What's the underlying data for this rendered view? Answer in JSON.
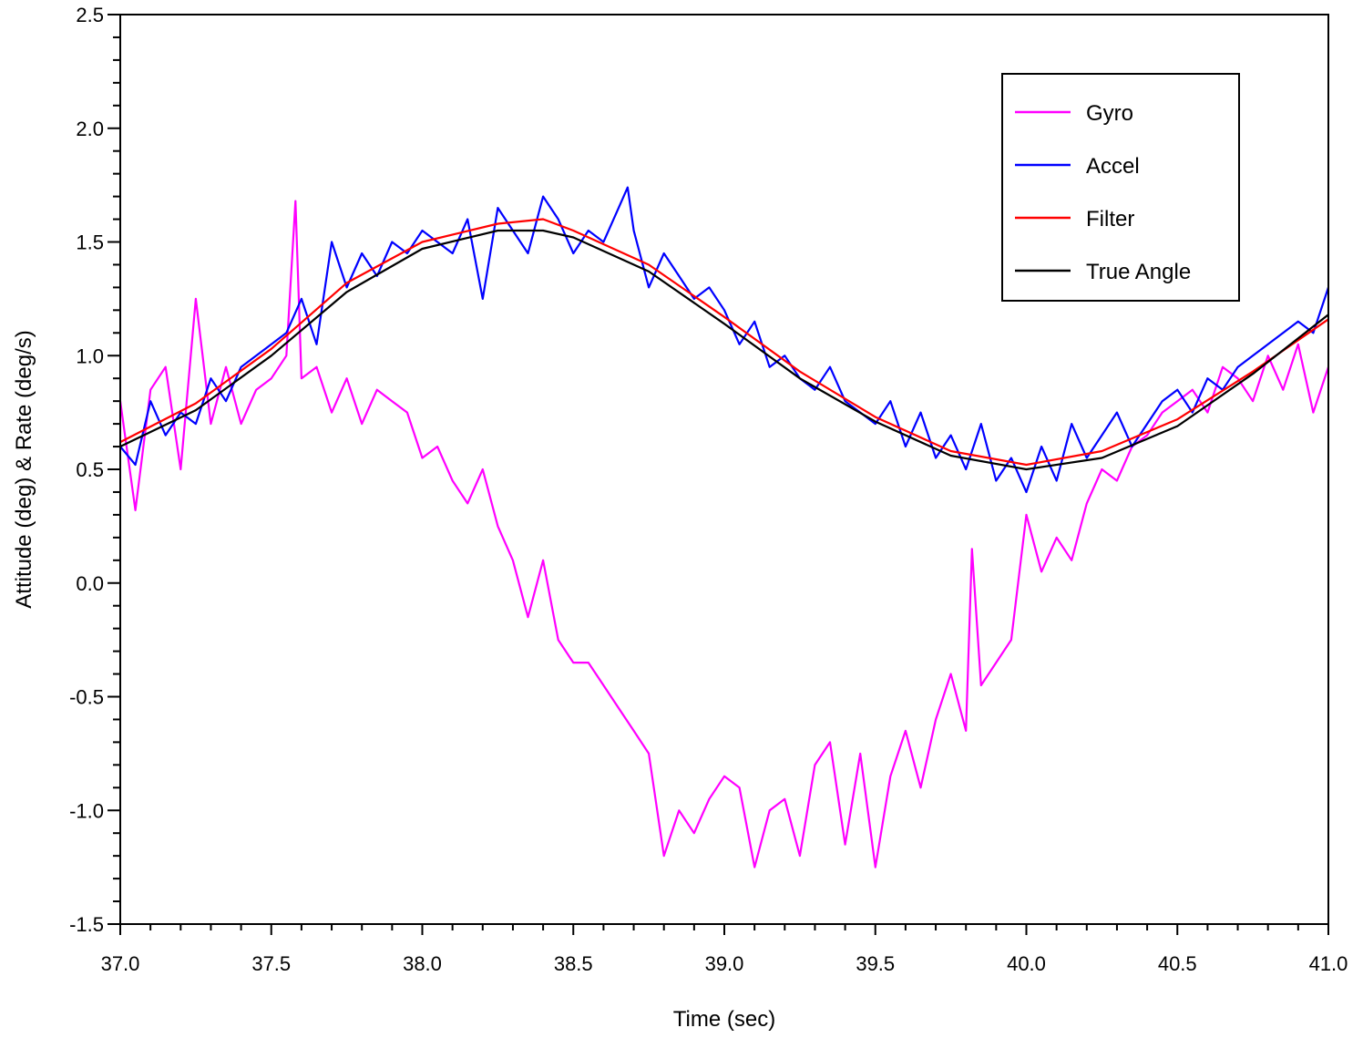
{
  "chart_data": {
    "type": "line",
    "xlabel": "Time (sec)",
    "ylabel": "Attitude (deg) & Rate (deg/s)",
    "xlim": [
      37.0,
      41.0
    ],
    "ylim": [
      -1.5,
      2.5
    ],
    "x_ticks": [
      "37.0",
      "37.5",
      "38.0",
      "38.5",
      "39.0",
      "39.5",
      "40.0",
      "40.5",
      "41.0"
    ],
    "y_ticks": [
      "-1.5",
      "-1.0",
      "-0.5",
      "0.0",
      "0.5",
      "1.0",
      "1.5",
      "2.0",
      "2.5"
    ],
    "x_minor_step": 0.1,
    "y_minor_step": 0.1,
    "grid": false,
    "legend_position": "top-right",
    "series": [
      {
        "name": "Gyro",
        "color": "#ff00ff",
        "x": [
          37.0,
          37.05,
          37.1,
          37.15,
          37.2,
          37.25,
          37.3,
          37.35,
          37.4,
          37.45,
          37.5,
          37.55,
          37.58,
          37.6,
          37.65,
          37.7,
          37.75,
          37.8,
          37.85,
          37.9,
          37.95,
          38.0,
          38.05,
          38.1,
          38.15,
          38.2,
          38.25,
          38.3,
          38.35,
          38.4,
          38.45,
          38.5,
          38.55,
          38.6,
          38.65,
          38.7,
          38.75,
          38.8,
          38.85,
          38.9,
          38.95,
          39.0,
          39.05,
          39.1,
          39.15,
          39.2,
          39.25,
          39.3,
          39.35,
          39.4,
          39.45,
          39.5,
          39.55,
          39.6,
          39.65,
          39.7,
          39.75,
          39.8,
          39.82,
          39.85,
          39.9,
          39.95,
          40.0,
          40.05,
          40.1,
          40.15,
          40.2,
          40.25,
          40.3,
          40.35,
          40.4,
          40.45,
          40.5,
          40.55,
          40.6,
          40.65,
          40.7,
          40.75,
          40.8,
          40.85,
          40.9,
          40.95,
          41.0
        ],
        "y": [
          0.8,
          0.32,
          0.85,
          0.95,
          0.5,
          1.25,
          0.7,
          0.95,
          0.7,
          0.85,
          0.9,
          1.0,
          1.68,
          0.9,
          0.95,
          0.75,
          0.9,
          0.7,
          0.85,
          0.8,
          0.75,
          0.55,
          0.6,
          0.45,
          0.35,
          0.5,
          0.25,
          0.1,
          -0.15,
          0.1,
          -0.25,
          -0.35,
          -0.35,
          -0.45,
          -0.55,
          -0.65,
          -0.75,
          -1.2,
          -1.0,
          -1.1,
          -0.95,
          -0.85,
          -0.9,
          -1.25,
          -1.0,
          -0.95,
          -1.2,
          -0.8,
          -0.7,
          -1.15,
          -0.75,
          -1.25,
          -0.85,
          -0.65,
          -0.9,
          -0.6,
          -0.4,
          -0.65,
          0.15,
          -0.45,
          -0.35,
          -0.25,
          0.3,
          0.05,
          0.2,
          0.1,
          0.35,
          0.5,
          0.45,
          0.6,
          0.65,
          0.75,
          0.8,
          0.85,
          0.75,
          0.95,
          0.9,
          0.8,
          1.0,
          0.85,
          1.05,
          0.75,
          0.95
        ]
      },
      {
        "name": "Accel",
        "color": "#0000ff",
        "x": [
          37.0,
          37.05,
          37.1,
          37.15,
          37.2,
          37.25,
          37.3,
          37.35,
          37.4,
          37.45,
          37.5,
          37.55,
          37.6,
          37.65,
          37.7,
          37.75,
          37.8,
          37.85,
          37.9,
          37.95,
          38.0,
          38.05,
          38.1,
          38.15,
          38.2,
          38.25,
          38.3,
          38.35,
          38.4,
          38.45,
          38.5,
          38.55,
          38.6,
          38.65,
          38.68,
          38.7,
          38.75,
          38.8,
          38.85,
          38.9,
          38.95,
          39.0,
          39.05,
          39.1,
          39.15,
          39.2,
          39.25,
          39.3,
          39.35,
          39.4,
          39.45,
          39.5,
          39.55,
          39.6,
          39.65,
          39.7,
          39.75,
          39.8,
          39.85,
          39.9,
          39.95,
          40.0,
          40.05,
          40.1,
          40.15,
          40.2,
          40.25,
          40.3,
          40.35,
          40.4,
          40.45,
          40.5,
          40.55,
          40.6,
          40.65,
          40.7,
          40.75,
          40.8,
          40.85,
          40.9,
          40.95,
          41.0
        ],
        "y": [
          0.6,
          0.52,
          0.8,
          0.65,
          0.75,
          0.7,
          0.9,
          0.8,
          0.95,
          1.0,
          1.05,
          1.1,
          1.25,
          1.05,
          1.5,
          1.3,
          1.45,
          1.35,
          1.5,
          1.45,
          1.55,
          1.5,
          1.45,
          1.6,
          1.25,
          1.65,
          1.55,
          1.45,
          1.7,
          1.6,
          1.45,
          1.55,
          1.5,
          1.65,
          1.74,
          1.55,
          1.3,
          1.45,
          1.35,
          1.25,
          1.3,
          1.2,
          1.05,
          1.15,
          0.95,
          1.0,
          0.9,
          0.85,
          0.95,
          0.8,
          0.75,
          0.7,
          0.8,
          0.6,
          0.75,
          0.55,
          0.65,
          0.5,
          0.7,
          0.45,
          0.55,
          0.4,
          0.6,
          0.45,
          0.7,
          0.55,
          0.65,
          0.75,
          0.6,
          0.7,
          0.8,
          0.85,
          0.75,
          0.9,
          0.85,
          0.95,
          1.0,
          1.05,
          1.1,
          1.15,
          1.1,
          1.3
        ]
      },
      {
        "name": "Filter",
        "color": "#ff0000",
        "x": [
          37.0,
          37.25,
          37.5,
          37.75,
          38.0,
          38.25,
          38.4,
          38.5,
          38.75,
          39.0,
          39.25,
          39.5,
          39.75,
          40.0,
          40.25,
          40.5,
          40.75,
          41.0
        ],
        "y": [
          0.62,
          0.79,
          1.03,
          1.32,
          1.5,
          1.58,
          1.6,
          1.55,
          1.4,
          1.17,
          0.93,
          0.73,
          0.58,
          0.52,
          0.58,
          0.72,
          0.93,
          1.16
        ]
      },
      {
        "name": "True Angle",
        "color": "#000000",
        "x": [
          37.0,
          37.25,
          37.5,
          37.75,
          38.0,
          38.25,
          38.4,
          38.5,
          38.75,
          39.0,
          39.25,
          39.5,
          39.75,
          40.0,
          40.25,
          40.5,
          40.75,
          41.0
        ],
        "y": [
          0.6,
          0.76,
          1.0,
          1.28,
          1.47,
          1.55,
          1.55,
          1.52,
          1.37,
          1.14,
          0.9,
          0.71,
          0.56,
          0.5,
          0.55,
          0.69,
          0.92,
          1.18
        ]
      }
    ]
  }
}
